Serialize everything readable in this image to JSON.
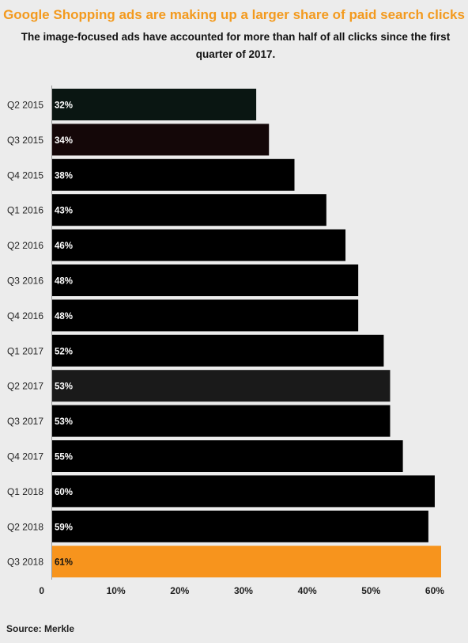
{
  "title": "Google Shopping ads are making up a larger share of paid search clicks",
  "subtitle": "The image-focused ads have accounted for more than half of all clicks since the first quarter of 2017.",
  "source": "Source: Merkle",
  "colors": {
    "background": "#ececec",
    "title": "#f39a1e",
    "bar_default": "#000000",
    "bar_highlight": "#f7941d"
  },
  "chart_data": {
    "type": "bar",
    "orientation": "horizontal",
    "categories": [
      "Q2 2015",
      "Q3 2015",
      "Q4 2015",
      "Q1 2016",
      "Q2 2016",
      "Q3 2016",
      "Q4 2016",
      "Q1 2017",
      "Q2 2017",
      "Q3 2017",
      "Q4 2017",
      "Q1 2018",
      "Q2 2018",
      "Q3 2018"
    ],
    "values": [
      32,
      34,
      38,
      43,
      46,
      48,
      48,
      52,
      53,
      53,
      55,
      60,
      59,
      61
    ],
    "data_labels": [
      "32%",
      "34%",
      "38%",
      "43%",
      "46%",
      "48%",
      "48%",
      "52%",
      "53%",
      "53%",
      "55%",
      "60%",
      "59%",
      "61%"
    ],
    "bar_colors": [
      "#0a1612",
      "#140708",
      "#000000",
      "#000000",
      "#000000",
      "#000000",
      "#000000",
      "#000000",
      "#1a1a1a",
      "#000000",
      "#000000",
      "#000000",
      "#000000",
      "#f7941d"
    ],
    "label_colors": [
      "#ffffff",
      "#ffffff",
      "#ffffff",
      "#ffffff",
      "#ffffff",
      "#ffffff",
      "#ffffff",
      "#ffffff",
      "#ffffff",
      "#ffffff",
      "#ffffff",
      "#ffffff",
      "#ffffff",
      "#111111"
    ],
    "xticks": [
      0,
      10,
      20,
      30,
      40,
      50,
      60
    ],
    "xtick_labels": [
      "0",
      "10%",
      "20%",
      "30%",
      "40%",
      "50%",
      "60%"
    ],
    "xlim": [
      0,
      61
    ],
    "title": "Google Shopping ads are making up a larger share of paid search clicks",
    "xlabel": "",
    "ylabel": "",
    "grid": false,
    "highlight": "Q3 2018"
  }
}
